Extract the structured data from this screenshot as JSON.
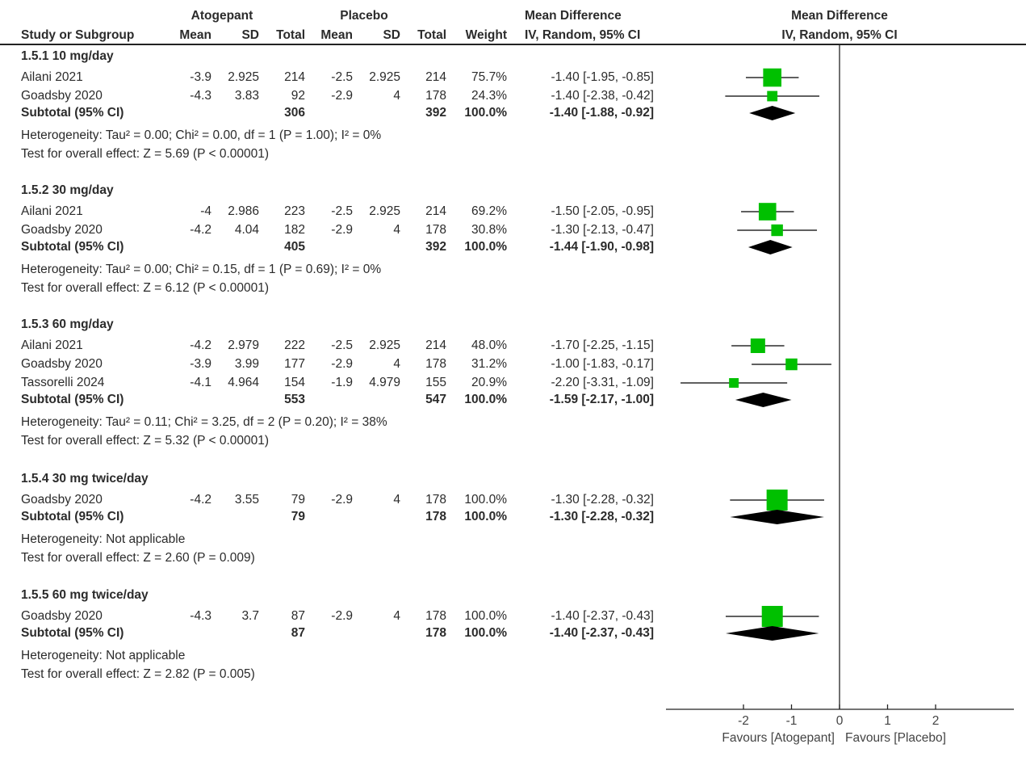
{
  "header": {
    "group1": "Atogepant",
    "group2": "Placebo",
    "effect_header": "Mean Difference",
    "effect_sub": "IV, Random, 95% CI",
    "plot_header": "Mean Difference",
    "plot_sub": "IV, Random, 95% CI",
    "columns": [
      "Study or Subgroup",
      "Mean",
      "SD",
      "Total",
      "Mean",
      "SD",
      "Total",
      "Weight"
    ]
  },
  "chart_data": {
    "type": "forest",
    "xlim": [
      -3.6,
      3.6
    ],
    "ticks": [
      -2,
      -1,
      0,
      1,
      2
    ],
    "tick_labels": [
      "-2",
      "-1",
      "0",
      "1",
      "2"
    ],
    "favours_left": "Favours [Atogepant]",
    "favours_right": "Favours [Placebo]",
    "colors": {
      "square": "#00c000",
      "diamond": "#000000",
      "line": "#000000"
    },
    "groups": [
      {
        "title": "1.5.1 10 mg/day",
        "studies": [
          {
            "name": "Ailani 2021",
            "mean1": "-3.9",
            "sd1": "2.925",
            "n1": "214",
            "mean2": "-2.5",
            "sd2": "2.925",
            "n2": "214",
            "weight": "75.7%",
            "ci_text": "-1.40 [-1.95, -0.85]",
            "est": -1.4,
            "lo": -1.95,
            "hi": -0.85,
            "w": 75.7
          },
          {
            "name": "Goadsby 2020",
            "mean1": "-4.3",
            "sd1": "3.83",
            "n1": "92",
            "mean2": "-2.9",
            "sd2": "4",
            "n2": "178",
            "weight": "24.3%",
            "ci_text": "-1.40 [-2.38, -0.42]",
            "est": -1.4,
            "lo": -2.38,
            "hi": -0.42,
            "w": 24.3
          }
        ],
        "subtotal": {
          "label": "Subtotal (95% CI)",
          "n1": "306",
          "n2": "392",
          "weight": "100.0%",
          "ci_text": "-1.40 [-1.88, -0.92]",
          "est": -1.4,
          "lo": -1.88,
          "hi": -0.92
        },
        "heterogeneity": "Heterogeneity: Tau² = 0.00; Chi² = 0.00, df = 1 (P = 1.00); I² = 0%",
        "overall": "Test for overall effect: Z = 5.69 (P < 0.00001)"
      },
      {
        "title": "1.5.2 30 mg/day",
        "studies": [
          {
            "name": "Ailani 2021",
            "mean1": "-4",
            "sd1": "2.986",
            "n1": "223",
            "mean2": "-2.5",
            "sd2": "2.925",
            "n2": "214",
            "weight": "69.2%",
            "ci_text": "-1.50 [-2.05, -0.95]",
            "est": -1.5,
            "lo": -2.05,
            "hi": -0.95,
            "w": 69.2
          },
          {
            "name": "Goadsby 2020",
            "mean1": "-4.2",
            "sd1": "4.04",
            "n1": "182",
            "mean2": "-2.9",
            "sd2": "4",
            "n2": "178",
            "weight": "30.8%",
            "ci_text": "-1.30 [-2.13, -0.47]",
            "est": -1.3,
            "lo": -2.13,
            "hi": -0.47,
            "w": 30.8
          }
        ],
        "subtotal": {
          "label": "Subtotal (95% CI)",
          "n1": "405",
          "n2": "392",
          "weight": "100.0%",
          "ci_text": "-1.44 [-1.90, -0.98]",
          "est": -1.44,
          "lo": -1.9,
          "hi": -0.98
        },
        "heterogeneity": "Heterogeneity: Tau² = 0.00; Chi² = 0.15, df = 1 (P = 0.69); I² = 0%",
        "overall": "Test for overall effect: Z = 6.12 (P < 0.00001)"
      },
      {
        "title": "1.5.3 60 mg/day",
        "studies": [
          {
            "name": "Ailani 2021",
            "mean1": "-4.2",
            "sd1": "2.979",
            "n1": "222",
            "mean2": "-2.5",
            "sd2": "2.925",
            "n2": "214",
            "weight": "48.0%",
            "ci_text": "-1.70 [-2.25, -1.15]",
            "est": -1.7,
            "lo": -2.25,
            "hi": -1.15,
            "w": 48.0
          },
          {
            "name": "Goadsby 2020",
            "mean1": "-3.9",
            "sd1": "3.99",
            "n1": "177",
            "mean2": "-2.9",
            "sd2": "4",
            "n2": "178",
            "weight": "31.2%",
            "ci_text": "-1.00 [-1.83, -0.17]",
            "est": -1.0,
            "lo": -1.83,
            "hi": -0.17,
            "w": 31.2
          },
          {
            "name": "Tassorelli 2024",
            "mean1": "-4.1",
            "sd1": "4.964",
            "n1": "154",
            "mean2": "-1.9",
            "sd2": "4.979",
            "n2": "155",
            "weight": "20.9%",
            "ci_text": "-2.20 [-3.31, -1.09]",
            "est": -2.2,
            "lo": -3.31,
            "hi": -1.09,
            "w": 20.9
          }
        ],
        "subtotal": {
          "label": "Subtotal (95% CI)",
          "n1": "553",
          "n2": "547",
          "weight": "100.0%",
          "ci_text": "-1.59 [-2.17, -1.00]",
          "est": -1.59,
          "lo": -2.17,
          "hi": -1.0
        },
        "heterogeneity": "Heterogeneity: Tau² = 0.11; Chi² = 3.25, df = 2 (P = 0.20); I² = 38%",
        "overall": "Test for overall effect: Z = 5.32 (P < 0.00001)"
      },
      {
        "title": "1.5.4 30 mg twice/day",
        "studies": [
          {
            "name": "Goadsby 2020",
            "mean1": "-4.2",
            "sd1": "3.55",
            "n1": "79",
            "mean2": "-2.9",
            "sd2": "4",
            "n2": "178",
            "weight": "100.0%",
            "ci_text": "-1.30 [-2.28, -0.32]",
            "est": -1.3,
            "lo": -2.28,
            "hi": -0.32,
            "w": 100
          }
        ],
        "subtotal": {
          "label": "Subtotal (95% CI)",
          "n1": "79",
          "n2": "178",
          "weight": "100.0%",
          "ci_text": "-1.30 [-2.28, -0.32]",
          "est": -1.3,
          "lo": -2.28,
          "hi": -0.32
        },
        "heterogeneity": "Heterogeneity: Not applicable",
        "overall": "Test for overall effect: Z = 2.60 (P = 0.009)"
      },
      {
        "title": "1.5.5 60 mg twice/day",
        "studies": [
          {
            "name": "Goadsby 2020",
            "mean1": "-4.3",
            "sd1": "3.7",
            "n1": "87",
            "mean2": "-2.9",
            "sd2": "4",
            "n2": "178",
            "weight": "100.0%",
            "ci_text": "-1.40 [-2.37, -0.43]",
            "est": -1.4,
            "lo": -2.37,
            "hi": -0.43,
            "w": 100
          }
        ],
        "subtotal": {
          "label": "Subtotal (95% CI)",
          "n1": "87",
          "n2": "178",
          "weight": "100.0%",
          "ci_text": "-1.40 [-2.37, -0.43]",
          "est": -1.4,
          "lo": -2.37,
          "hi": -0.43
        },
        "heterogeneity": "Heterogeneity: Not applicable",
        "overall": "Test for overall effect: Z = 2.82 (P = 0.005)"
      }
    ]
  }
}
